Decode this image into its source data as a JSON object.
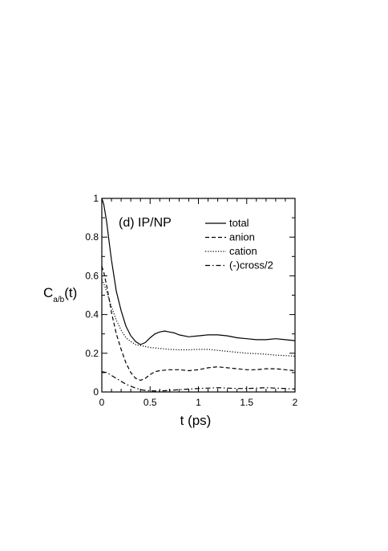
{
  "chart_data": {
    "type": "line",
    "title": "",
    "annotation": "(d) IP/NP",
    "xlabel": "t (ps)",
    "ylabel": {
      "main": "C",
      "subscript": "a/b",
      "suffix": "(t)"
    },
    "xlim": [
      0,
      2
    ],
    "ylim": [
      0,
      1
    ],
    "xticks": [
      0,
      0.5,
      1,
      1.5,
      2
    ],
    "xtick_labels": [
      "0",
      "0.5",
      "1",
      "1.5",
      "2"
    ],
    "yticks": [
      0,
      0.2,
      0.4,
      0.6,
      0.8,
      1
    ],
    "ytick_labels": [
      "0",
      "0.2",
      "0.4",
      "0.6",
      "0.8",
      "1"
    ],
    "grid": false,
    "legend_position": "top-right",
    "series": [
      {
        "name": "total",
        "dash": "solid",
        "points": [
          [
            0,
            1.0
          ],
          [
            0.02,
            0.97
          ],
          [
            0.05,
            0.88
          ],
          [
            0.08,
            0.76
          ],
          [
            0.1,
            0.68
          ],
          [
            0.15,
            0.52
          ],
          [
            0.2,
            0.42
          ],
          [
            0.25,
            0.34
          ],
          [
            0.3,
            0.29
          ],
          [
            0.35,
            0.26
          ],
          [
            0.4,
            0.245
          ],
          [
            0.45,
            0.255
          ],
          [
            0.5,
            0.28
          ],
          [
            0.55,
            0.3
          ],
          [
            0.6,
            0.31
          ],
          [
            0.65,
            0.315
          ],
          [
            0.7,
            0.31
          ],
          [
            0.75,
            0.305
          ],
          [
            0.8,
            0.295
          ],
          [
            0.9,
            0.285
          ],
          [
            1.0,
            0.29
          ],
          [
            1.1,
            0.295
          ],
          [
            1.2,
            0.295
          ],
          [
            1.3,
            0.29
          ],
          [
            1.4,
            0.28
          ],
          [
            1.5,
            0.275
          ],
          [
            1.6,
            0.27
          ],
          [
            1.7,
            0.27
          ],
          [
            1.8,
            0.275
          ],
          [
            1.9,
            0.27
          ],
          [
            2.0,
            0.265
          ]
        ]
      },
      {
        "name": "anion",
        "dash": "dashed",
        "points": [
          [
            0,
            0.65
          ],
          [
            0.02,
            0.62
          ],
          [
            0.05,
            0.55
          ],
          [
            0.08,
            0.47
          ],
          [
            0.1,
            0.41
          ],
          [
            0.15,
            0.3
          ],
          [
            0.2,
            0.22
          ],
          [
            0.25,
            0.15
          ],
          [
            0.3,
            0.1
          ],
          [
            0.35,
            0.07
          ],
          [
            0.4,
            0.06
          ],
          [
            0.45,
            0.07
          ],
          [
            0.5,
            0.09
          ],
          [
            0.55,
            0.105
          ],
          [
            0.6,
            0.11
          ],
          [
            0.7,
            0.115
          ],
          [
            0.8,
            0.115
          ],
          [
            0.9,
            0.11
          ],
          [
            1.0,
            0.115
          ],
          [
            1.1,
            0.125
          ],
          [
            1.2,
            0.13
          ],
          [
            1.3,
            0.125
          ],
          [
            1.4,
            0.12
          ],
          [
            1.5,
            0.115
          ],
          [
            1.6,
            0.115
          ],
          [
            1.7,
            0.12
          ],
          [
            1.8,
            0.12
          ],
          [
            1.9,
            0.115
          ],
          [
            2.0,
            0.11
          ]
        ]
      },
      {
        "name": "cation",
        "dash": "dotted",
        "points": [
          [
            0,
            0.58
          ],
          [
            0.02,
            0.56
          ],
          [
            0.05,
            0.52
          ],
          [
            0.08,
            0.47
          ],
          [
            0.1,
            0.44
          ],
          [
            0.15,
            0.37
          ],
          [
            0.2,
            0.32
          ],
          [
            0.25,
            0.28
          ],
          [
            0.3,
            0.26
          ],
          [
            0.35,
            0.245
          ],
          [
            0.4,
            0.24
          ],
          [
            0.45,
            0.235
          ],
          [
            0.5,
            0.23
          ],
          [
            0.6,
            0.225
          ],
          [
            0.7,
            0.22
          ],
          [
            0.8,
            0.218
          ],
          [
            0.9,
            0.218
          ],
          [
            1.0,
            0.22
          ],
          [
            1.1,
            0.22
          ],
          [
            1.2,
            0.215
          ],
          [
            1.3,
            0.21
          ],
          [
            1.4,
            0.205
          ],
          [
            1.5,
            0.2
          ],
          [
            1.6,
            0.198
          ],
          [
            1.7,
            0.195
          ],
          [
            1.8,
            0.19
          ],
          [
            1.9,
            0.188
          ],
          [
            2.0,
            0.185
          ]
        ]
      },
      {
        "name": "(-)cross/2",
        "dash": "dashdot",
        "points": [
          [
            0,
            0.105
          ],
          [
            0.05,
            0.1
          ],
          [
            0.1,
            0.085
          ],
          [
            0.15,
            0.07
          ],
          [
            0.2,
            0.055
          ],
          [
            0.25,
            0.04
          ],
          [
            0.3,
            0.03
          ],
          [
            0.35,
            0.02
          ],
          [
            0.4,
            0.012
          ],
          [
            0.45,
            0.008
          ],
          [
            0.5,
            0.006
          ],
          [
            0.6,
            0.005
          ],
          [
            0.7,
            0.008
          ],
          [
            0.8,
            0.012
          ],
          [
            0.9,
            0.015
          ],
          [
            1.0,
            0.018
          ],
          [
            1.1,
            0.02
          ],
          [
            1.2,
            0.022
          ],
          [
            1.3,
            0.02
          ],
          [
            1.4,
            0.018
          ],
          [
            1.5,
            0.018
          ],
          [
            1.6,
            0.02
          ],
          [
            1.7,
            0.022
          ],
          [
            1.8,
            0.02
          ],
          [
            1.9,
            0.018
          ],
          [
            2.0,
            0.015
          ]
        ]
      }
    ]
  }
}
